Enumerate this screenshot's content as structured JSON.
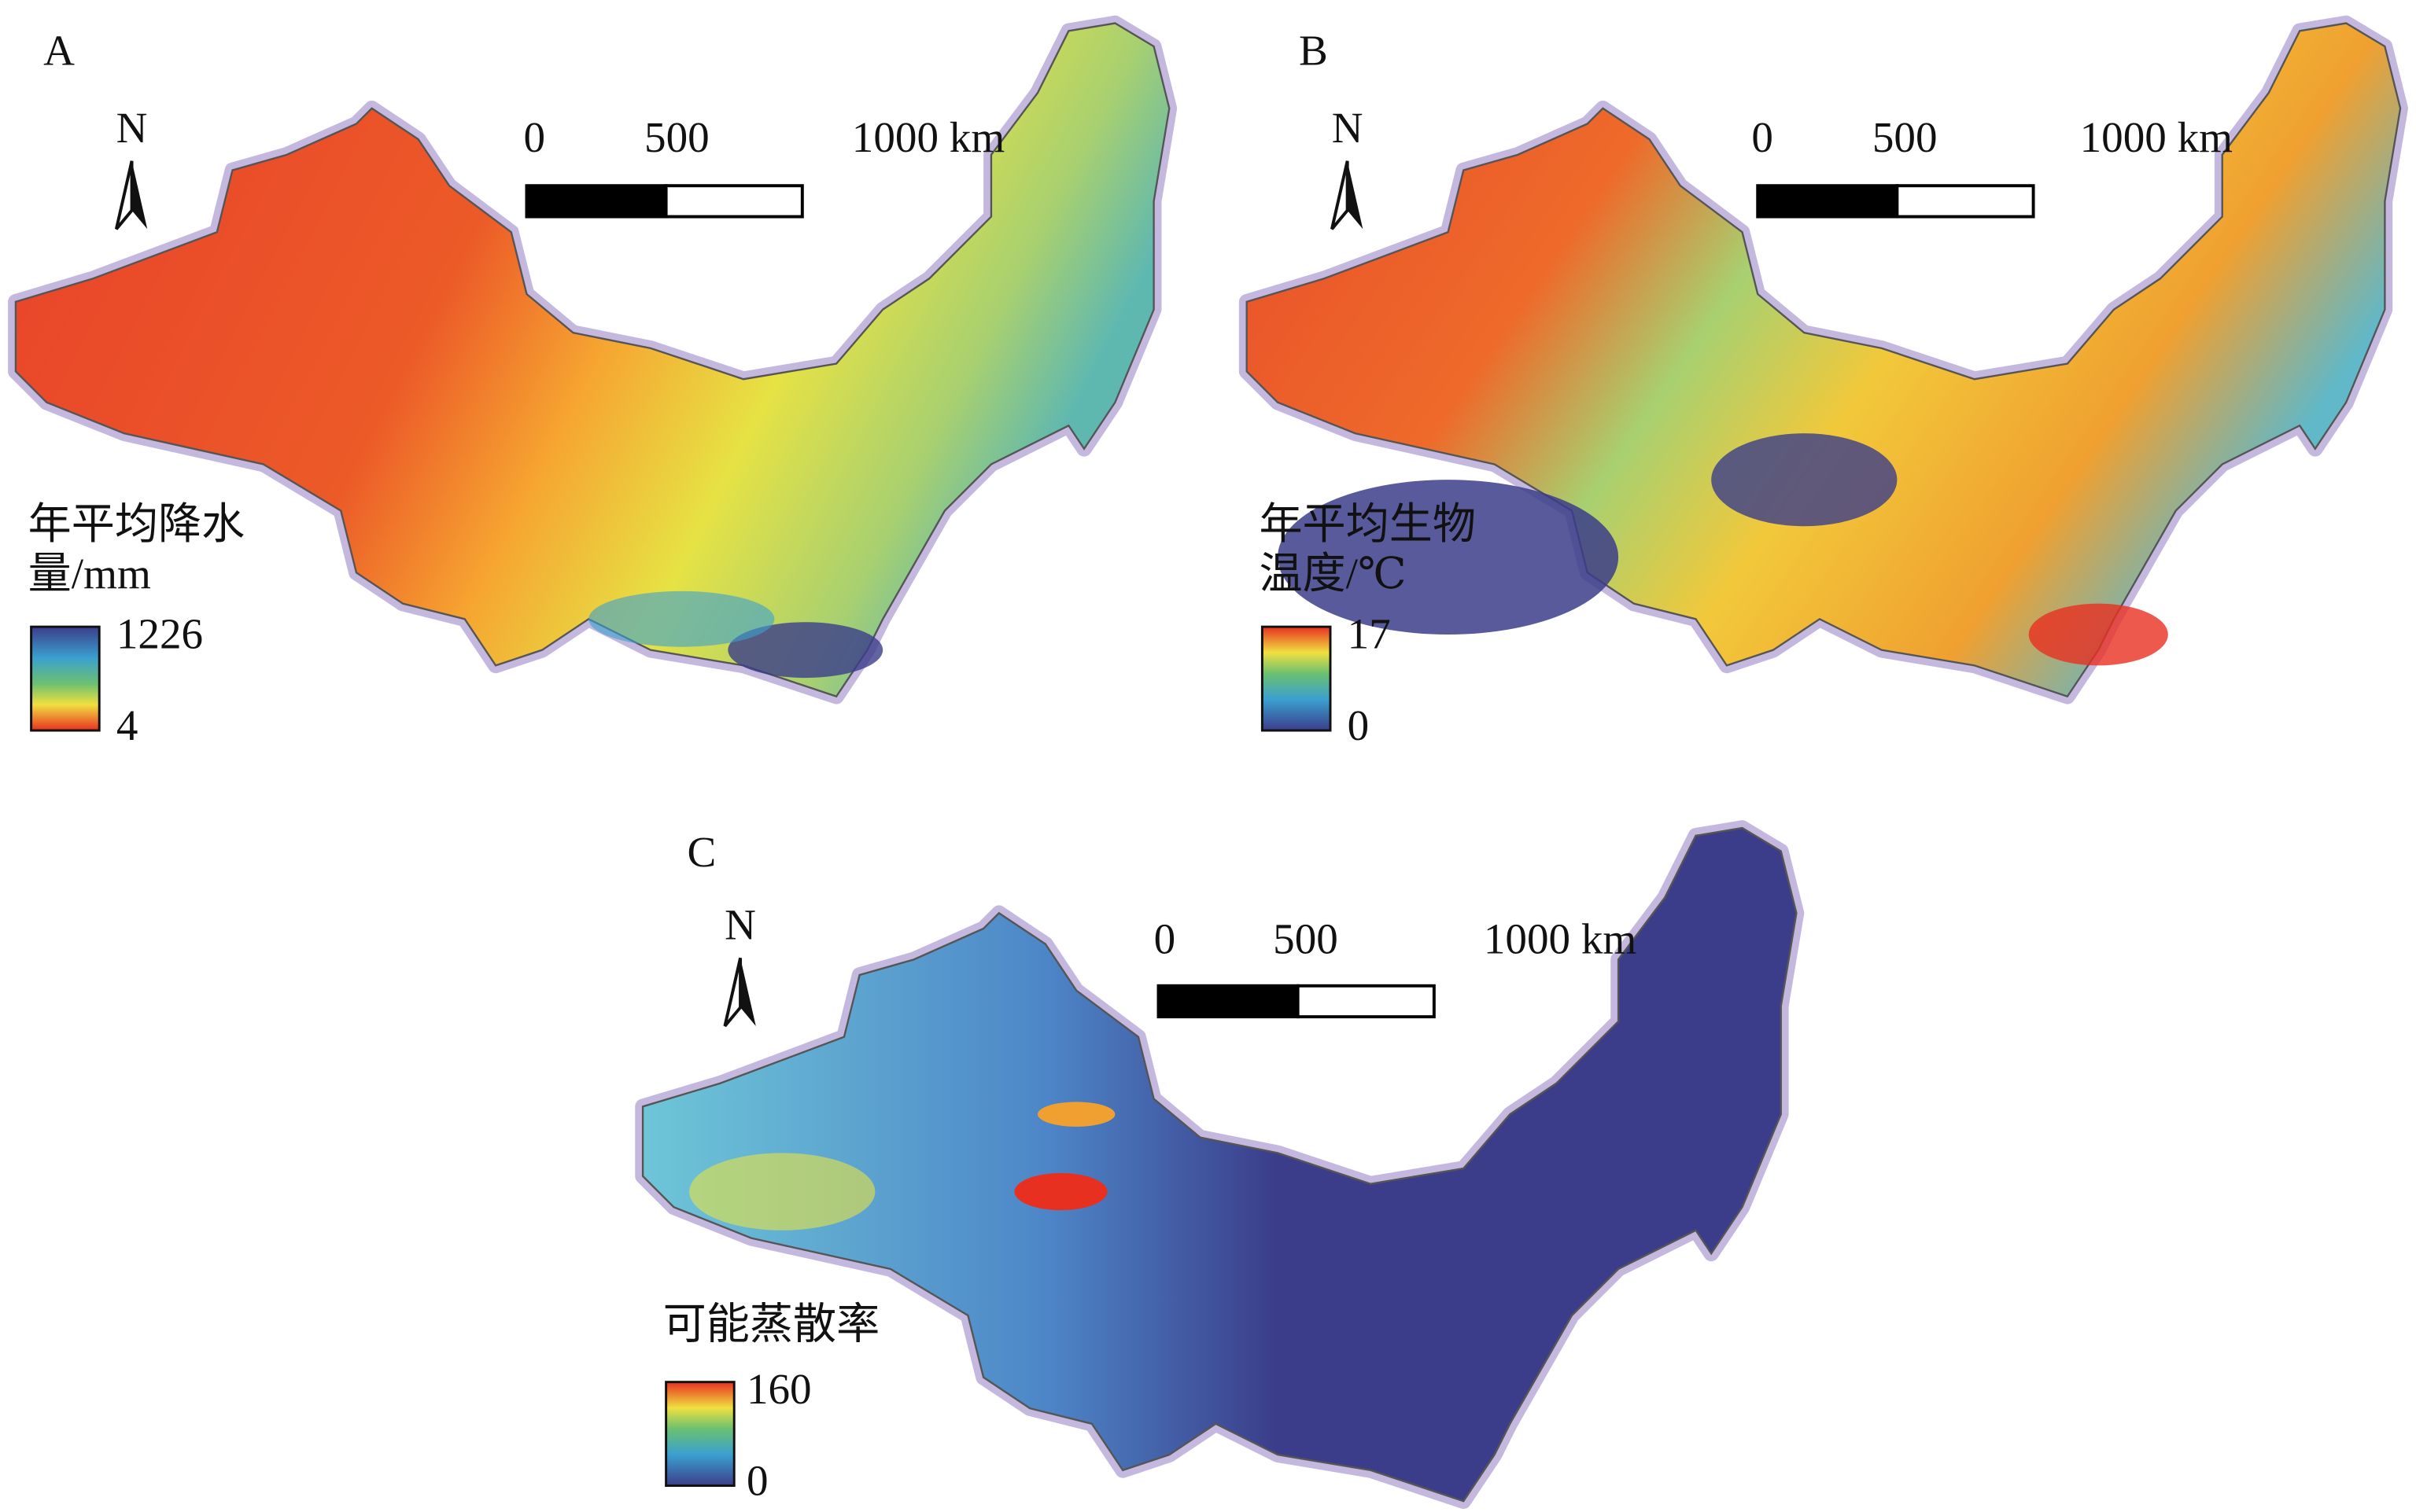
{
  "panels": [
    {
      "label": "A",
      "north": "N",
      "scale_labels": [
        "0",
        "500",
        "1000 km"
      ],
      "legend_title": [
        "年平均降水",
        "量/mm"
      ],
      "legend_max": 1226,
      "legend_min": 4
    },
    {
      "label": "B",
      "north": "N",
      "scale_labels": [
        "0",
        "500",
        "1000 km"
      ],
      "legend_title": [
        "年平均生物",
        "温度/℃"
      ],
      "legend_max": 17,
      "legend_min": 0
    },
    {
      "label": "C",
      "north": "N",
      "scale_labels": [
        "0",
        "500",
        "1000 km"
      ],
      "legend_title": [
        "可能蒸散率"
      ],
      "legend_max": 160,
      "legend_min": 0
    }
  ]
}
